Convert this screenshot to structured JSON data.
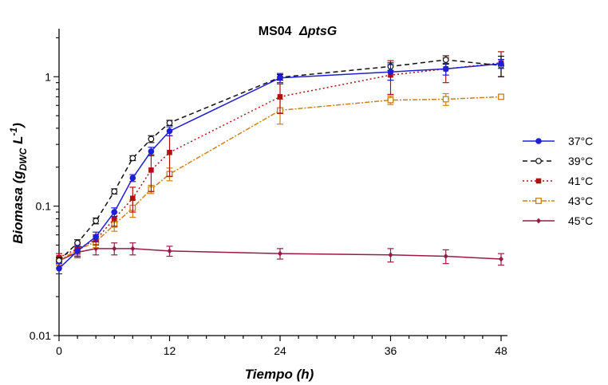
{
  "chart_data": {
    "type": "line",
    "title_main": "MS04",
    "title_italic": "ΔptsG",
    "xlabel": "Tiempo (h)",
    "ylabel": {
      "base": "Biomasa (g",
      "sub": "DWC",
      "mid": " L",
      "sup": "-1",
      "end": ")"
    },
    "x_ticks": [
      0,
      12,
      24,
      36,
      48
    ],
    "x_tick_labels": [
      "0",
      "12",
      "24",
      "36",
      "48"
    ],
    "xlim": [
      0,
      48
    ],
    "y_scale": "log",
    "ylim": [
      0.01,
      2.35
    ],
    "y_ticks": [
      0.01,
      0.1,
      1
    ],
    "y_tick_labels": [
      "0.01",
      "0.1",
      "1"
    ],
    "legend_position": "right",
    "series": [
      {
        "name": "37°C",
        "color": "#1f1fd6",
        "dash": "",
        "marker": "filled-circle",
        "x": [
          0,
          2,
          4,
          6,
          8,
          10,
          12,
          24,
          36,
          42,
          48
        ],
        "y": [
          0.033,
          0.045,
          0.058,
          0.09,
          0.165,
          0.265,
          0.38,
          0.98,
          1.09,
          1.15,
          1.26
        ],
        "err": [
          0.003,
          0.004,
          0.005,
          0.007,
          0.01,
          0.02,
          0.03,
          0.08,
          0.15,
          0.12,
          0.1
        ]
      },
      {
        "name": "39°C",
        "color": "#111111",
        "dash": "6,4",
        "marker": "open-circle",
        "x": [
          0,
          2,
          4,
          6,
          8,
          10,
          12,
          24,
          36,
          42,
          48
        ],
        "y": [
          0.038,
          0.052,
          0.077,
          0.13,
          0.235,
          0.33,
          0.44,
          0.99,
          1.2,
          1.35,
          1.22
        ],
        "err": [
          0.002,
          0.003,
          0.004,
          0.006,
          0.01,
          0.02,
          0.02,
          0.05,
          0.08,
          0.1,
          0.22
        ]
      },
      {
        "name": "41°C",
        "color": "#b01010",
        "dash": "2,3",
        "marker": "filled-square",
        "x": [
          0,
          2,
          4,
          6,
          8,
          10,
          12,
          24,
          36,
          42,
          48
        ],
        "y": [
          0.04,
          0.047,
          0.055,
          0.08,
          0.115,
          0.19,
          0.26,
          0.7,
          1.03,
          1.15,
          1.28
        ],
        "err": [
          0.003,
          0.004,
          0.005,
          0.01,
          0.025,
          0.06,
          0.09,
          0.18,
          0.3,
          0.25,
          0.28
        ]
      },
      {
        "name": "43°C",
        "color": "#c8801a",
        "dash": "6,2,2,2",
        "marker": "open-square",
        "x": [
          0,
          2,
          4,
          6,
          8,
          10,
          12,
          24,
          36,
          42,
          48
        ],
        "y": [
          0.038,
          0.046,
          0.053,
          0.072,
          0.097,
          0.135,
          0.177,
          0.55,
          0.66,
          0.67,
          0.7
        ],
        "err": [
          0.003,
          0.004,
          0.005,
          0.008,
          0.015,
          0.01,
          0.02,
          0.12,
          0.05,
          0.07,
          0.03
        ]
      },
      {
        "name": "45°C",
        "color": "#9a1a45",
        "dash": "",
        "marker": "filled-diamond",
        "x": [
          0,
          2,
          4,
          6,
          8,
          12,
          24,
          36,
          42,
          48
        ],
        "y": [
          0.038,
          0.044,
          0.047,
          0.047,
          0.047,
          0.045,
          0.043,
          0.042,
          0.041,
          0.039
        ],
        "err": [
          0.003,
          0.004,
          0.005,
          0.005,
          0.005,
          0.004,
          0.004,
          0.005,
          0.005,
          0.004
        ]
      }
    ]
  }
}
